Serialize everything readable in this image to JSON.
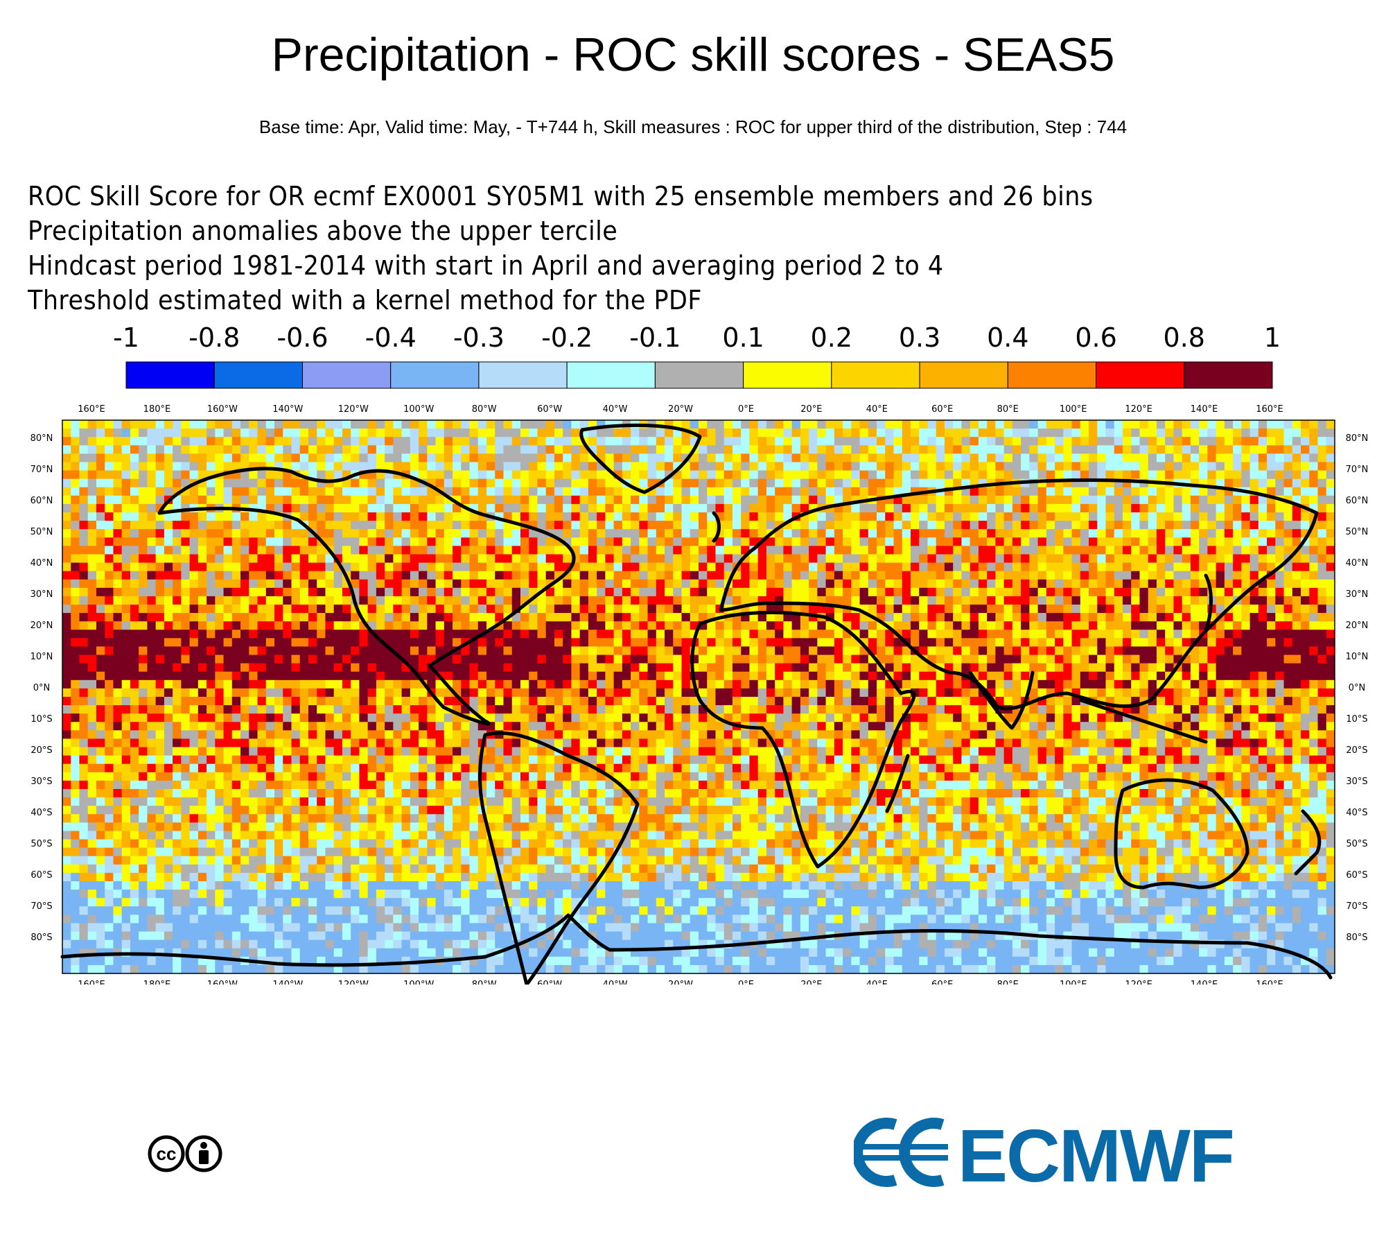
{
  "header": {
    "title": "Precipitation - ROC skill scores - SEAS5",
    "subtitle": "Base time: Apr, Valid time: May, - T+744 h, Skill measures : ROC for upper third of the distribution, Step : 744"
  },
  "description": {
    "lines": [
      "ROC Skill Score for OR ecmf EX0001 SY05M1 with 25 ensemble members and 26 bins",
      "Precipitation anomalies above the upper tercile",
      "Hindcast period 1981-2014 with start in April and averaging period  2 to  4",
      "Threshold estimated with a kernel method for the PDF"
    ]
  },
  "colorbar": {
    "labels": [
      "-1",
      "-0.8",
      "-0.6",
      "-0.4",
      "-0.3",
      "-0.2",
      "-0.1",
      "0.1",
      "0.2",
      "0.3",
      "0.4",
      "0.6",
      "0.8",
      "1"
    ],
    "colors": [
      "#0000f5",
      "#0b6be6",
      "#8c9cf5",
      "#79b4f5",
      "#b5dcf8",
      "#b0fdfd",
      "#b0b0b0",
      "#fcfc00",
      "#fcd500",
      "#fcb000",
      "#fc8100",
      "#fc0000",
      "#7a0020"
    ]
  },
  "map": {
    "lon_labels": [
      "160°E",
      "180°E",
      "160°W",
      "140°W",
      "120°W",
      "100°W",
      "80°W",
      "60°W",
      "40°W",
      "20°W",
      "0°E",
      "20°E",
      "40°E",
      "60°E",
      "80°E",
      "100°E",
      "120°E",
      "140°E",
      "160°E"
    ],
    "lat_labels": [
      "80°N",
      "70°N",
      "60°N",
      "50°N",
      "40°N",
      "30°N",
      "20°N",
      "10°N",
      "0°N",
      "10°S",
      "20°S",
      "30°S",
      "40°S",
      "50°S",
      "60°S",
      "70°S",
      "80°S"
    ],
    "projection": "cylindrical",
    "coastline_color": "#000000"
  },
  "footer": {
    "license": "cc-by",
    "logo_text": "ECMWF",
    "logo_color": "#0b6aa8"
  }
}
